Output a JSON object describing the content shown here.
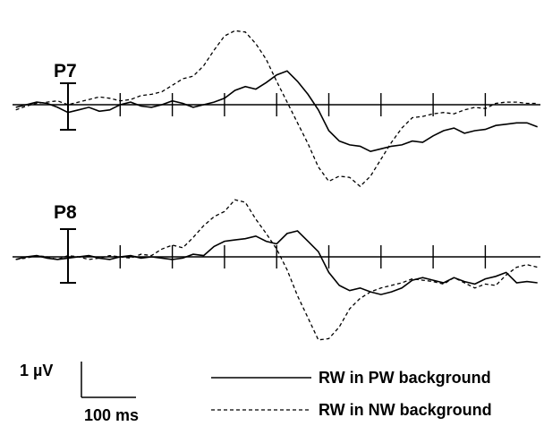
{
  "chart_data": {
    "type": "line",
    "panels": [
      {
        "label": "P7",
        "series": [
          {
            "name": "RW in PW background",
            "style": "solid",
            "t": [
              -100,
              -80,
              -60,
              -40,
              -20,
              0,
              20,
              40,
              60,
              80,
              100,
              120,
              140,
              160,
              180,
              200,
              220,
              240,
              260,
              280,
              300,
              320,
              340,
              360,
              380,
              400,
              420,
              440,
              460,
              480,
              500,
              520,
              540,
              560,
              580,
              600,
              620,
              640,
              660,
              680,
              700,
              720,
              740,
              760,
              780,
              800,
              820,
              840,
              860,
              880,
              900
            ],
            "v": [
              0.1,
              0.0,
              -0.1,
              -0.05,
              0.1,
              0.3,
              0.2,
              0.1,
              0.25,
              0.2,
              0.0,
              -0.1,
              0.05,
              0.1,
              0.0,
              -0.15,
              -0.05,
              0.1,
              0.0,
              -0.1,
              -0.25,
              -0.55,
              -0.7,
              -0.6,
              -0.85,
              -1.15,
              -1.3,
              -0.9,
              -0.4,
              0.2,
              1.0,
              1.4,
              1.55,
              1.6,
              1.8,
              1.7,
              1.6,
              1.55,
              1.4,
              1.45,
              1.2,
              1.0,
              0.9,
              1.1,
              1.0,
              0.95,
              0.8,
              0.75,
              0.7,
              0.7,
              0.85
            ]
          },
          {
            "name": "RW in NW background",
            "style": "dashed",
            "t": [
              -100,
              -80,
              -60,
              -40,
              -20,
              0,
              20,
              40,
              60,
              80,
              100,
              120,
              140,
              160,
              180,
              200,
              220,
              240,
              260,
              280,
              300,
              320,
              340,
              360,
              380,
              400,
              420,
              440,
              460,
              480,
              500,
              520,
              540,
              560,
              580,
              600,
              620,
              640,
              660,
              680,
              700,
              720,
              740,
              760,
              780,
              800,
              820,
              840,
              860,
              880,
              900
            ],
            "v": [
              0.2,
              0.05,
              -0.05,
              -0.1,
              -0.15,
              0.0,
              -0.1,
              -0.2,
              -0.3,
              -0.25,
              -0.15,
              -0.2,
              -0.35,
              -0.4,
              -0.5,
              -0.75,
              -1.0,
              -1.1,
              -1.5,
              -2.1,
              -2.65,
              -2.85,
              -2.8,
              -2.35,
              -1.75,
              -0.9,
              -0.1,
              0.7,
              1.5,
              2.4,
              2.95,
              2.75,
              2.8,
              3.15,
              2.75,
              2.1,
              1.45,
              0.9,
              0.5,
              0.45,
              0.35,
              0.3,
              0.35,
              0.2,
              0.1,
              0.15,
              -0.05,
              -0.1,
              -0.1,
              -0.05,
              -0.05
            ]
          }
        ]
      },
      {
        "label": "P8",
        "series": [
          {
            "name": "RW in PW background",
            "style": "solid",
            "t": [
              -100,
              -80,
              -60,
              -40,
              -20,
              0,
              20,
              40,
              60,
              80,
              100,
              120,
              140,
              160,
              180,
              200,
              220,
              240,
              260,
              280,
              300,
              320,
              340,
              360,
              380,
              400,
              420,
              440,
              460,
              480,
              500,
              520,
              540,
              560,
              580,
              600,
              620,
              640,
              660,
              680,
              700,
              720,
              740,
              760,
              780,
              800,
              820,
              840,
              860,
              880,
              900
            ],
            "v": [
              0.1,
              0.0,
              -0.05,
              0.05,
              0.1,
              0.05,
              0.0,
              -0.05,
              0.05,
              0.1,
              0.0,
              -0.05,
              0.05,
              0.0,
              0.05,
              0.1,
              0.05,
              -0.1,
              -0.05,
              -0.4,
              -0.6,
              -0.65,
              -0.7,
              -0.8,
              -0.6,
              -0.5,
              -0.9,
              -1.0,
              -0.6,
              -0.2,
              0.6,
              1.1,
              1.3,
              1.2,
              1.35,
              1.45,
              1.35,
              1.2,
              0.9,
              0.8,
              0.9,
              1.0,
              0.8,
              0.95,
              1.05,
              0.85,
              0.75,
              0.6,
              1.0,
              0.95,
              1.0
            ]
          },
          {
            "name": "RW in NW background",
            "style": "dashed",
            "t": [
              -100,
              -80,
              -60,
              -40,
              -20,
              0,
              20,
              40,
              60,
              80,
              100,
              120,
              140,
              160,
              180,
              200,
              220,
              240,
              260,
              280,
              300,
              320,
              340,
              360,
              380,
              400,
              420,
              440,
              460,
              480,
              500,
              520,
              540,
              560,
              580,
              600,
              620,
              640,
              660,
              680,
              700,
              720,
              740,
              760,
              780,
              800,
              820,
              840,
              860,
              880,
              900
            ],
            "v": [
              0.1,
              0.05,
              -0.05,
              0.0,
              0.1,
              -0.05,
              0.0,
              0.1,
              0.05,
              -0.05,
              0.0,
              0.05,
              -0.1,
              -0.05,
              -0.3,
              -0.45,
              -0.35,
              -0.75,
              -1.2,
              -1.55,
              -1.75,
              -2.2,
              -2.1,
              -1.45,
              -0.9,
              -0.3,
              0.5,
              1.5,
              2.35,
              3.2,
              3.15,
              2.7,
              2.0,
              1.6,
              1.35,
              1.2,
              1.1,
              1.0,
              0.85,
              0.9,
              0.95,
              1.05,
              0.8,
              1.0,
              1.2,
              1.05,
              1.1,
              0.7,
              0.4,
              0.3,
              0.4
            ]
          }
        ]
      }
    ],
    "tick_interval_ms": 100,
    "scale_bar": {
      "amplitude_label": "1 µV",
      "amplitude_value": 1,
      "time_label": "100 ms",
      "time_value": 100
    },
    "legend": [
      {
        "label": "RW in PW background",
        "style": "solid"
      },
      {
        "label": "RW in NW background",
        "style": "dashed"
      }
    ],
    "legend_position": "bottom-right",
    "grid": false
  }
}
